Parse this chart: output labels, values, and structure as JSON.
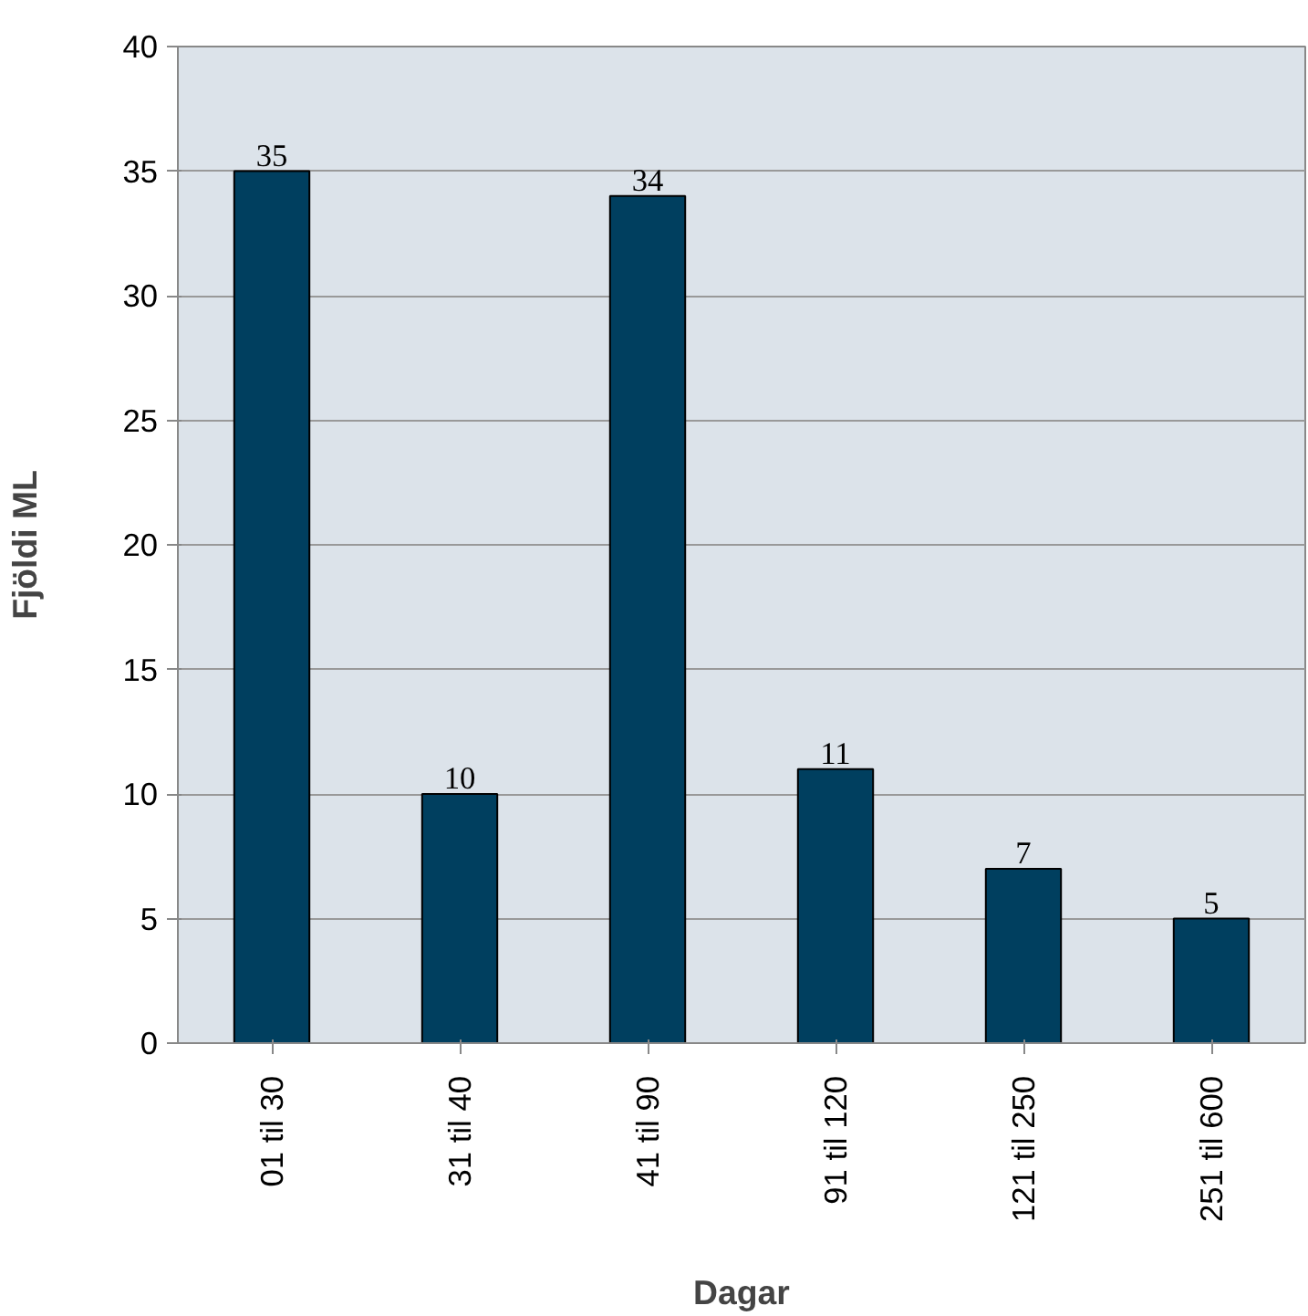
{
  "chart_data": {
    "type": "bar",
    "xlabel": "Dagar",
    "ylabel": "Fjöldi ML",
    "categories": [
      "01 til 30",
      "31 til 40",
      "41 til 90",
      "91 til 120",
      "121 til 250",
      "251 til 600"
    ],
    "values": [
      35,
      10,
      34,
      11,
      7,
      5
    ],
    "color": "#003f5f",
    "ylim": [
      0,
      40
    ],
    "yticks": [
      0,
      5,
      10,
      15,
      20,
      25,
      30,
      35,
      40
    ],
    "grid": "y",
    "data_labels": true
  }
}
